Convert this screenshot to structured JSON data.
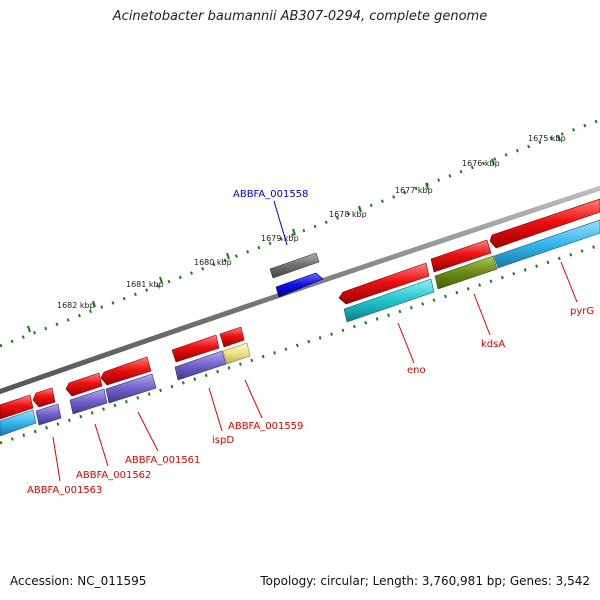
{
  "title": "Acinetobacter baumannii AB307-0294, complete genome",
  "footer": {
    "accession": "Accession: NC_011595",
    "summary": "Topology: circular; Length: 3,760,981 bp; Genes: 3,542"
  },
  "colors": {
    "backbone": "#7a7a7a",
    "ticks": "#1c7a1c",
    "gene_red": "#ee1111",
    "gene_cyan": "#22c4cc",
    "gene_blue_light": "#33b5ee",
    "gene_purple": "#7060c8",
    "gene_olive": "#6a8a1a",
    "gene_yellow": "#eee08a",
    "gene_gray": "#6e6e6e",
    "gene_blue": "#1010dd",
    "label_red": "#dd0000",
    "label_blue": "#0000cc"
  },
  "kbp_labels": [
    "1675 kbp",
    "1676 kbp",
    "1677 kbp",
    "1678 kbp",
    "1679 kbp",
    "1680 kbp",
    "1681 kbp",
    "1682 kbp"
  ],
  "gene_labels": [
    "ABBFA_001558",
    "pyrG",
    "kdsA",
    "eno",
    "ABBFA_001559",
    "ispD",
    "ABBFA_001561",
    "ABBFA_001562",
    "ABBFA_001563"
  ]
}
